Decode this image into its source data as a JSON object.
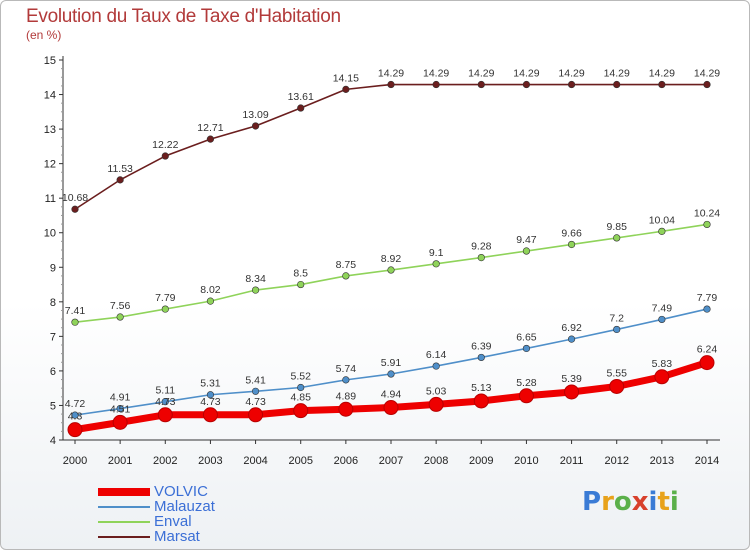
{
  "header": {
    "title": "Evolution du Taux de Taxe d'Habitation",
    "unit": "(en %)"
  },
  "logo": {
    "text": "Proxiti",
    "colors": [
      "#3a7bd5",
      "#e8a21b",
      "#5bb04a",
      "#d8402b",
      "#3a7bd5",
      "#e8a21b",
      "#5bb04a"
    ]
  },
  "chart_data": {
    "type": "line",
    "title": "Evolution du Taux de Taxe d'Habitation",
    "ylabel": "(en %)",
    "xlabel": "",
    "x": [
      "2000",
      "2001",
      "2002",
      "2003",
      "2004",
      "2005",
      "2006",
      "2007",
      "2008",
      "2009",
      "2010",
      "2011",
      "2012",
      "2013",
      "2014"
    ],
    "ylim": [
      4,
      15
    ],
    "yticks": [
      "4",
      "5",
      "6",
      "7",
      "8",
      "9",
      "10",
      "11",
      "12",
      "13",
      "14",
      "15"
    ],
    "grid": false,
    "legend_position": "bottom-left",
    "series": [
      {
        "name": "VOLVIC",
        "color": "#ee0000",
        "values": [
          4.3,
          4.51,
          4.73,
          4.73,
          4.73,
          4.85,
          4.89,
          4.94,
          5.03,
          5.13,
          5.28,
          5.39,
          5.55,
          5.83,
          6.24
        ],
        "labels": [
          "4.3",
          "4.51",
          "4.73",
          "4.73",
          "4.73",
          "4.85",
          "4.89",
          "4.94",
          "5.03",
          "5.13",
          "5.28",
          "5.39",
          "5.55",
          "5.83",
          "6.24"
        ]
      },
      {
        "name": "Malauzat",
        "color": "#4f8fc9",
        "values": [
          4.72,
          4.91,
          5.11,
          5.31,
          5.41,
          5.52,
          5.74,
          5.91,
          6.14,
          6.39,
          6.65,
          6.92,
          7.2,
          7.49,
          7.79
        ],
        "labels": [
          "4.72",
          "4.91",
          "5.11",
          "5.31",
          "5.41",
          "5.52",
          "5.74",
          "5.91",
          "6.14",
          "6.39",
          "6.65",
          "6.92",
          "7.2",
          "7.49",
          "7.79"
        ]
      },
      {
        "name": "Enval",
        "color": "#8fd35a",
        "values": [
          7.41,
          7.56,
          7.79,
          8.02,
          8.34,
          8.5,
          8.75,
          8.92,
          9.1,
          9.28,
          9.47,
          9.66,
          9.85,
          10.04,
          10.24
        ],
        "labels": [
          "7.41",
          "7.56",
          "7.79",
          "8.02",
          "8.34",
          "8.5",
          "8.75",
          "8.92",
          "9.1",
          "9.28",
          "9.47",
          "9.66",
          "9.85",
          "10.04",
          "10.24"
        ]
      },
      {
        "name": "Marsat",
        "color": "#6b1e1e",
        "values": [
          10.68,
          11.53,
          12.22,
          12.71,
          13.09,
          13.61,
          14.15,
          14.29,
          14.29,
          14.29,
          14.29,
          14.29,
          14.29,
          14.29,
          14.29
        ],
        "labels": [
          "10.68",
          "11.53",
          "12.22",
          "12.71",
          "13.09",
          "13.61",
          "14.15",
          "14.29",
          "14.29",
          "14.29",
          "14.29",
          "14.29",
          "14.29",
          "14.29",
          "14.29"
        ]
      }
    ]
  }
}
